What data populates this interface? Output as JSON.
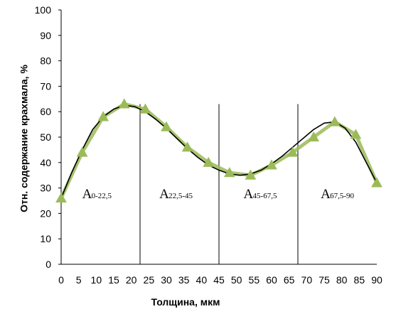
{
  "chart_data": {
    "type": "line",
    "xlabel": "Толщина, мкм",
    "ylabel": "Отн. содержание крахмала, %",
    "xlim": [
      0,
      90
    ],
    "ylim": [
      0,
      100
    ],
    "x_ticks": [
      "0",
      "5",
      "10",
      "15",
      "20",
      "25",
      "30",
      "35",
      "40",
      "45",
      "50",
      "55",
      "60",
      "65",
      "70",
      "75",
      "80",
      "85",
      "90"
    ],
    "y_ticks": [
      "0",
      "10",
      "20",
      "30",
      "40",
      "50",
      "60",
      "70",
      "80",
      "90",
      "100"
    ],
    "grid": false,
    "series": [
      {
        "marker": "triangle",
        "color": "#9bbb59",
        "x": [
          0,
          6,
          12,
          18,
          24,
          30,
          36,
          42,
          48,
          54,
          60,
          66,
          72,
          78,
          84,
          90
        ],
        "y": [
          26,
          44,
          58,
          63,
          61,
          54,
          46,
          40,
          36,
          35,
          39,
          44,
          50,
          56,
          51,
          32
        ]
      }
    ],
    "fit_line": {
      "color": "#000000",
      "x": [
        0,
        3,
        6,
        9,
        12,
        15,
        18,
        21,
        24,
        27,
        30,
        33,
        36,
        39,
        42,
        45,
        48,
        51,
        54,
        57,
        60,
        63,
        66,
        69,
        72,
        75,
        78,
        81,
        84,
        87,
        90
      ],
      "y": [
        26,
        36,
        45,
        53,
        58,
        61,
        62.5,
        62,
        60,
        57,
        53.5,
        49.5,
        45.5,
        42,
        39,
        37,
        35.5,
        35,
        35.5,
        37,
        39.5,
        42.5,
        46,
        49.5,
        53,
        55.5,
        56,
        53.5,
        48,
        40,
        32
      ]
    },
    "dividers": [
      22.5,
      45,
      67.5
    ],
    "regions": [
      {
        "main": "A",
        "sub": "0-22,5",
        "x": 6
      },
      {
        "main": "A",
        "sub": "22,5-45",
        "x": 28
      },
      {
        "main": "A",
        "sub": "45-67,5",
        "x": 52
      },
      {
        "main": "A",
        "sub": "67,5-90",
        "x": 74
      }
    ],
    "region_label_y": 26
  }
}
